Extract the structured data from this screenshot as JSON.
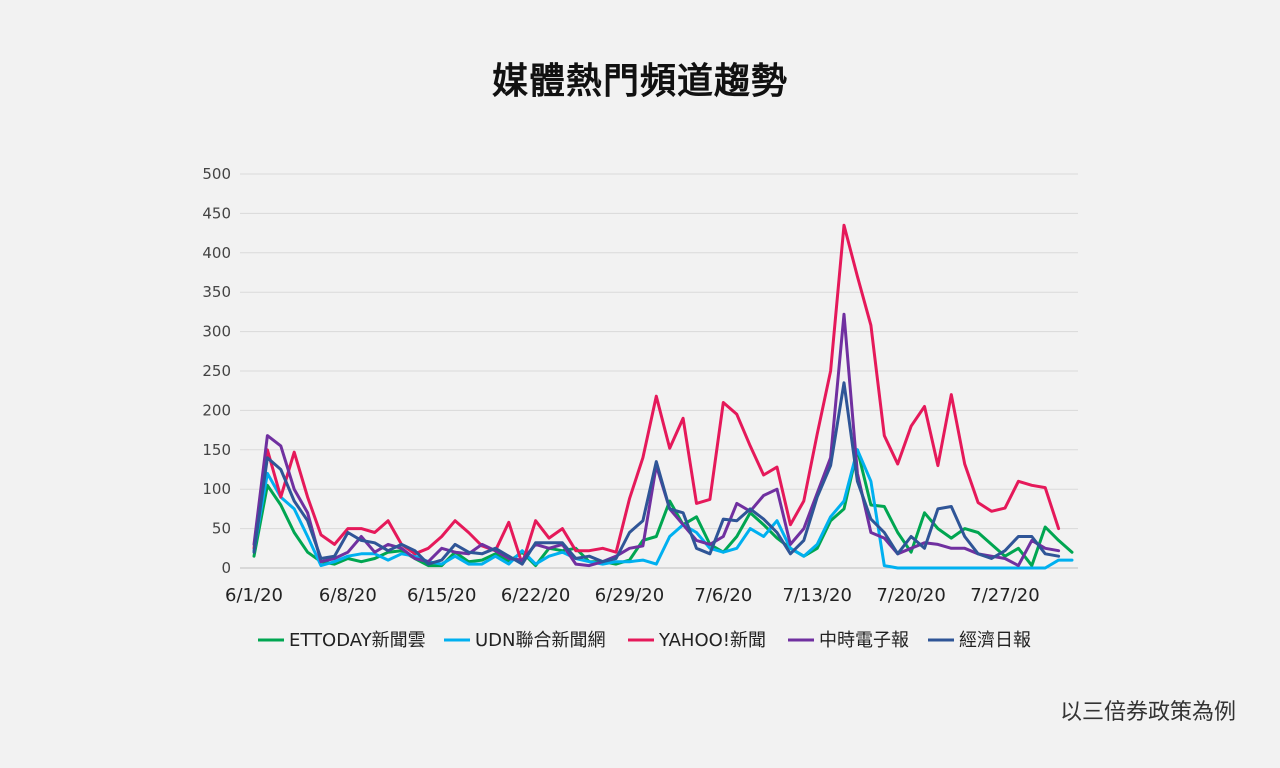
{
  "title": "媒體熱門頻道趨勢",
  "footnote": "以三倍券政策為例",
  "chart_data": {
    "type": "line",
    "title": "媒體熱門頻道趨勢",
    "xlabel": "",
    "ylabel": "",
    "ylim": [
      0,
      500
    ],
    "yticks": [
      "0",
      "50",
      "100",
      "150",
      "200",
      "250",
      "300",
      "350",
      "400",
      "450",
      "500"
    ],
    "x_tick_labels": [
      "6/1/20",
      "6/8/20",
      "6/15/20",
      "6/22/20",
      "6/29/20",
      "7/6/20",
      "7/13/20",
      "7/20/20",
      "7/27/20"
    ],
    "x_tick_positions": [
      0,
      7,
      14,
      21,
      28,
      35,
      42,
      49,
      56
    ],
    "x_start": "6/1/20",
    "x_interval_days": 1,
    "grid": true,
    "legend_position": "bottom",
    "series": [
      {
        "name": "ETTODAY新聞雲",
        "color": "#00a651",
        "values": [
          15,
          105,
          80,
          45,
          20,
          8,
          5,
          12,
          8,
          12,
          20,
          22,
          12,
          3,
          3,
          20,
          8,
          10,
          18,
          8,
          20,
          3,
          25,
          22,
          25,
          8,
          8,
          5,
          10,
          35,
          40,
          85,
          55,
          65,
          30,
          20,
          40,
          70,
          55,
          38,
          25,
          15,
          25,
          60,
          75,
          150,
          80,
          78,
          45,
          20,
          70,
          50,
          38,
          50,
          45,
          30,
          15,
          25,
          3,
          52,
          35,
          20
        ]
      },
      {
        "name": "UDN聯合新聞網",
        "color": "#00b0f0",
        "values": [
          22,
          120,
          90,
          75,
          40,
          3,
          8,
          15,
          18,
          18,
          10,
          18,
          15,
          8,
          5,
          15,
          5,
          5,
          15,
          5,
          22,
          5,
          15,
          20,
          12,
          8,
          5,
          8,
          8,
          10,
          5,
          40,
          55,
          45,
          25,
          20,
          25,
          50,
          40,
          60,
          25,
          15,
          30,
          65,
          85,
          150,
          110,
          3,
          0,
          0,
          0,
          0,
          0,
          0,
          0,
          0,
          0,
          0,
          0,
          0,
          10,
          10
        ]
      },
      {
        "name": "YAHOO!新聞",
        "color": "#e5195a",
        "values": [
          25,
          150,
          90,
          147,
          90,
          42,
          30,
          50,
          50,
          45,
          60,
          30,
          18,
          25,
          40,
          60,
          45,
          28,
          22,
          58,
          5,
          60,
          38,
          50,
          22,
          22,
          25,
          20,
          88,
          140,
          218,
          152,
          190,
          82,
          87,
          210,
          195,
          155,
          118,
          128,
          55,
          85,
          170,
          250,
          435,
          370,
          308,
          168,
          132,
          180,
          205,
          130,
          220,
          132,
          83,
          72,
          76,
          110,
          105,
          102,
          50
        ]
      },
      {
        "name": "中時電子報",
        "color": "#7030a0",
        "values": [
          30,
          168,
          155,
          100,
          70,
          8,
          12,
          20,
          40,
          20,
          30,
          25,
          12,
          8,
          25,
          20,
          18,
          30,
          22,
          12,
          10,
          30,
          25,
          30,
          5,
          3,
          8,
          15,
          25,
          28,
          130,
          75,
          55,
          35,
          30,
          40,
          82,
          72,
          92,
          100,
          30,
          50,
          95,
          140,
          322,
          120,
          45,
          38,
          18,
          25,
          32,
          30,
          25,
          25,
          18,
          15,
          12,
          3,
          35,
          25,
          22
        ]
      },
      {
        "name": "經濟日報",
        "color": "#2f5597",
        "values": [
          20,
          140,
          125,
          85,
          60,
          12,
          15,
          45,
          35,
          32,
          22,
          30,
          22,
          5,
          10,
          30,
          20,
          18,
          25,
          15,
          5,
          32,
          32,
          32,
          12,
          15,
          8,
          12,
          45,
          60,
          135,
          75,
          70,
          25,
          18,
          62,
          60,
          75,
          62,
          45,
          18,
          35,
          90,
          130,
          235,
          110,
          62,
          45,
          18,
          40,
          25,
          75,
          78,
          40,
          18,
          12,
          22,
          40,
          40,
          18,
          15
        ]
      }
    ]
  }
}
